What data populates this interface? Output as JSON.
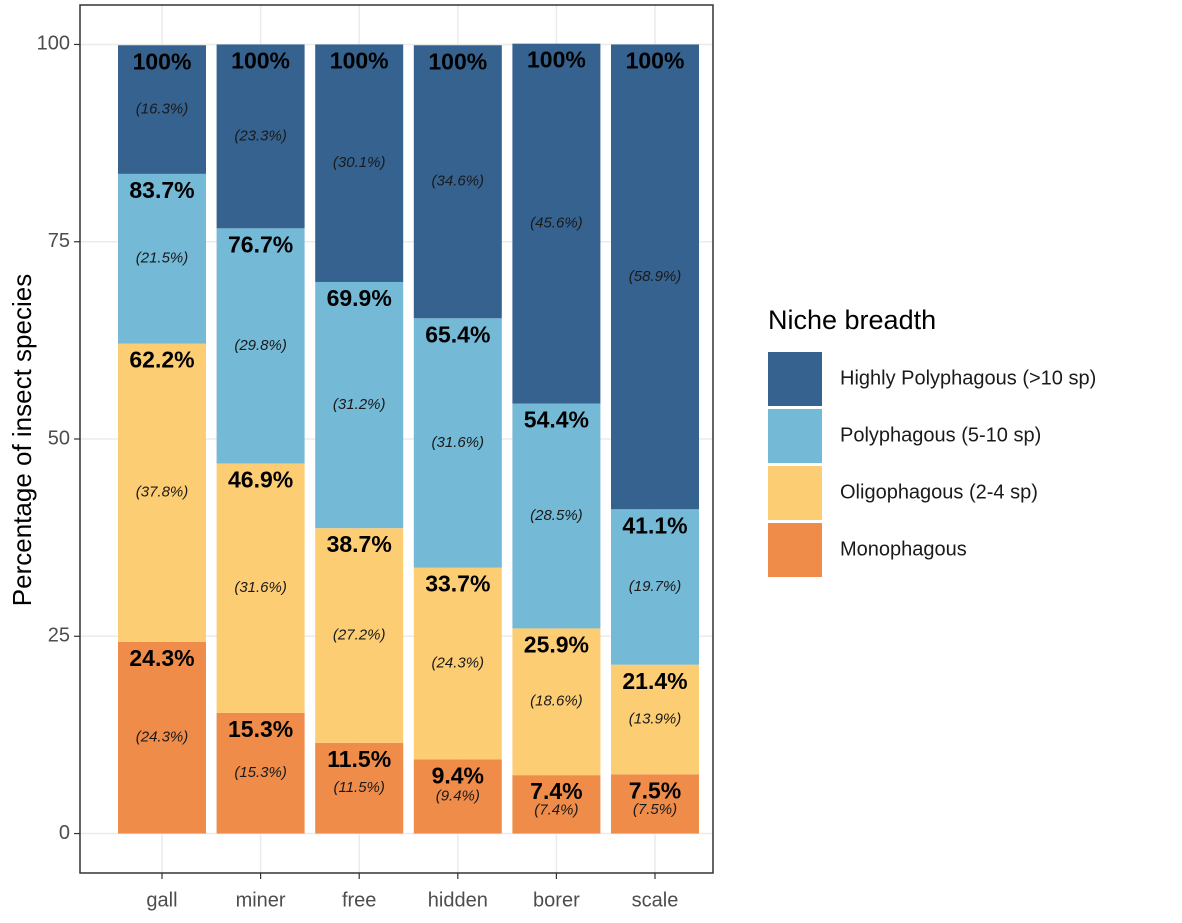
{
  "chart_data": {
    "type": "stacked_bar",
    "y_label": "Percentage of insect species",
    "legend_title": "Niche breadth",
    "categories": [
      "gall",
      "miner",
      "free",
      "hidden",
      "borer",
      "scale"
    ],
    "ylim": [
      -5,
      105
    ],
    "yticks": [
      0,
      25,
      50,
      75,
      100
    ],
    "grid": true,
    "series": [
      {
        "name": "Monophagous",
        "color": "#ef8c4a",
        "values": [
          24.3,
          15.3,
          11.5,
          9.4,
          7.4,
          7.5
        ],
        "value_labels": [
          "(24.3%)",
          "(15.3%)",
          "(11.5%)",
          "(9.4%)",
          "(7.4%)",
          "(7.5%)"
        ],
        "cumulative_labels": [
          "24.3%",
          "15.3%",
          "11.5%",
          "9.4%",
          "7.4%",
          "7.5%"
        ]
      },
      {
        "name": "Oligophagous (2-4 sp)",
        "color": "#fdcd74",
        "values": [
          37.8,
          31.6,
          27.2,
          24.3,
          18.6,
          13.9
        ],
        "value_labels": [
          "(37.8%)",
          "(31.6%)",
          "(27.2%)",
          "(24.3%)",
          "(18.6%)",
          "(13.9%)"
        ],
        "cumulative_labels": [
          "62.2%",
          "46.9%",
          "38.7%",
          "33.7%",
          "25.9%",
          "21.4%"
        ]
      },
      {
        "name": "Polyphagous (5-10 sp)",
        "color": "#74b9d6",
        "values": [
          21.5,
          29.8,
          31.2,
          31.6,
          28.5,
          19.7
        ],
        "value_labels": [
          "(21.5%)",
          "(29.8%)",
          "(31.2%)",
          "(31.6%)",
          "(28.5%)",
          "(19.7%)"
        ],
        "cumulative_labels": [
          "83.7%",
          "76.7%",
          "69.9%",
          "65.4%",
          "54.4%",
          "41.1%"
        ]
      },
      {
        "name": "Highly Polyphagous (>10 sp)",
        "color": "#35628f",
        "values": [
          16.3,
          23.3,
          30.1,
          34.6,
          45.6,
          58.9
        ],
        "value_labels": [
          "(16.3%)",
          "(23.3%)",
          "(30.1%)",
          "(34.6%)",
          "(45.6%)",
          "(58.9%)"
        ],
        "cumulative_labels": [
          "100%",
          "100%",
          "100%",
          "100%",
          "100%",
          "100%"
        ]
      }
    ]
  }
}
